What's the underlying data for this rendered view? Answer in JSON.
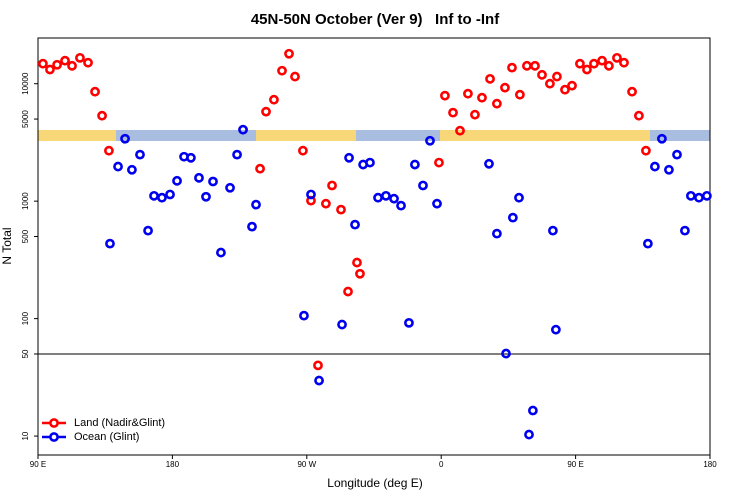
{
  "chart_data": {
    "type": "scatter",
    "title": "45N-50N October (Ver 9)   Inf to -Inf",
    "x_label": "Longitude (deg E)",
    "y_label": "N Total",
    "log_y": true,
    "legend_position": "bottom-left",
    "hline": 50,
    "xlim": [
      90,
      540
    ],
    "ylim": [
      6.9,
      24500
    ],
    "xticks": [
      {
        "value": 90,
        "label": "90 E"
      },
      180,
      {
        "value": 270,
        "label": "90 W"
      },
      {
        "value": 360,
        "label": "0"
      },
      {
        "value": 450,
        "label": "90 E"
      },
      {
        "value": 540,
        "label": "180"
      }
    ],
    "yticks": [
      10,
      50,
      100,
      500,
      1000,
      5000,
      10000
    ],
    "series": [
      {
        "name": "Land (Nadir&Glint)",
        "color": "#ff0000",
        "x": [
          93.3,
          98.0,
          102.8,
          108.1,
          112.8,
          118.1,
          123.5,
          128.2,
          132.9,
          137.5,
          238.7,
          242.7,
          248.0,
          253.4,
          258.1,
          262.1,
          267.4,
          272.8,
          277.5,
          282.8,
          286.9,
          292.9,
          297.6,
          303.6,
          305.6,
          358.5,
          362.5,
          367.9,
          372.6,
          377.9,
          382.6,
          387.3,
          392.7,
          397.3,
          402.7,
          407.4,
          412.7,
          417.4,
          422.8,
          427.5,
          432.8,
          437.5,
          442.9,
          447.6,
          452.9,
          457.6,
          462.3,
          467.7,
          472.3,
          477.7,
          482.4,
          487.8,
          492.4,
          497.1
        ],
        "values": [
          14800,
          13200,
          14500,
          15700,
          14200,
          16600,
          15100,
          8550,
          5340,
          2690,
          1890,
          5780,
          7310,
          12900,
          18000,
          11500,
          2690,
          1010,
          40,
          952,
          1360,
          847,
          170,
          300,
          241,
          2130,
          7910,
          5670,
          3980,
          8220,
          5450,
          7600,
          11000,
          6760,
          9250,
          13700,
          8060,
          14200,
          14200,
          11900,
          10000,
          11500,
          8890,
          9620,
          14800,
          13200,
          14800,
          15700,
          14200,
          16600,
          15100,
          8550,
          5340,
          2690
        ]
      },
      {
        "name": "Ocean (Glint)",
        "color": "#0000ee",
        "x": [
          138.2,
          143.6,
          148.3,
          152.9,
          158.3,
          163.7,
          167.7,
          173.0,
          178.4,
          183.1,
          187.8,
          192.4,
          197.8,
          202.5,
          207.2,
          212.5,
          218.6,
          223.3,
          227.3,
          233.3,
          236.0,
          268.1,
          272.8,
          278.2,
          293.6,
          298.3,
          302.3,
          307.7,
          312.3,
          317.7,
          323.0,
          328.4,
          333.1,
          338.4,
          342.4,
          347.8,
          352.5,
          357.2,
          392.0,
          397.3,
          403.4,
          408.0,
          412.1,
          418.8,
          421.4,
          434.8,
          436.8,
          498.4,
          503.1,
          507.8,
          512.5,
          517.9,
          523.2,
          527.2,
          532.6,
          537.9
        ],
        "values": [
          435,
          1970,
          3400,
          1850,
          2490,
          561,
          1110,
          1070,
          1140,
          1490,
          2390,
          2340,
          1580,
          1090,
          1470,
          365,
          1300,
          2490,
          4060,
          607,
          934,
          106,
          1140,
          29.7,
          89,
          2340,
          631,
          2050,
          2130,
          1070,
          1110,
          1050,
          916,
          92,
          2050,
          1360,
          3270,
          952,
          2080,
          529,
          50.4,
          724,
          1070,
          10.3,
          16.5,
          561,
          80.5,
          435,
          1970,
          3400,
          1850,
          2490,
          561,
          1110,
          1070,
          1110
        ]
      }
    ]
  }
}
